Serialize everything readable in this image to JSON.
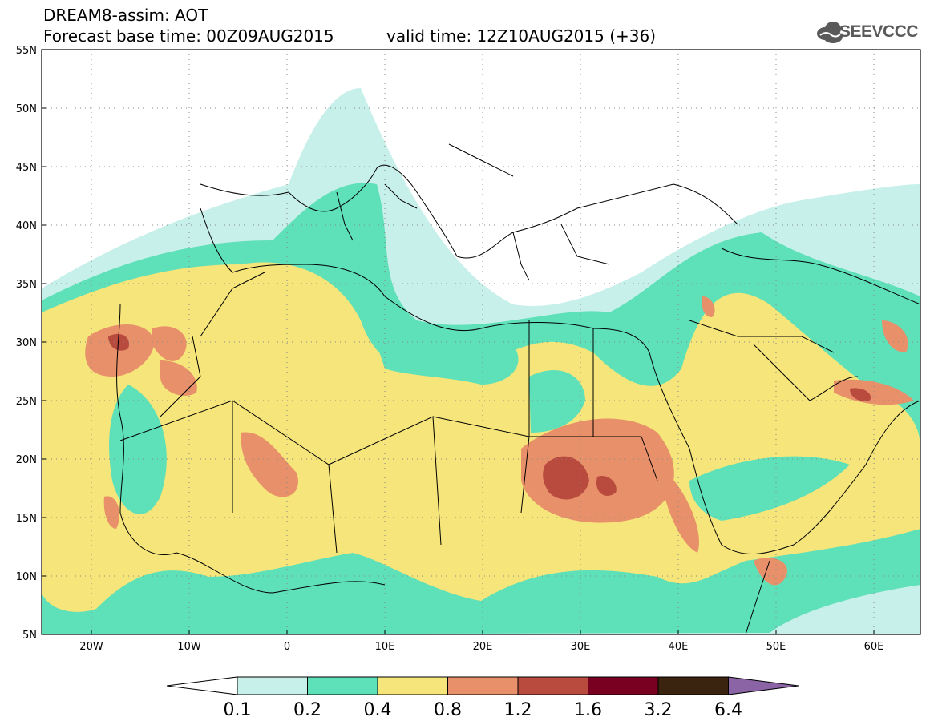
{
  "header": {
    "title": "DREAM8-assim: AOT",
    "base_time": "Forecast base time: 00Z09AUG2015",
    "valid_time": "valid time: 12Z10AUG2015 (+36)"
  },
  "logo": {
    "text": "SEEVCCC",
    "icon": "cloud-logo-icon"
  },
  "map": {
    "region": "North Africa, Mediterranean, Middle East",
    "lat_ticks": [
      "55N",
      "50N",
      "45N",
      "40N",
      "35N",
      "30N",
      "25N",
      "20N",
      "15N",
      "10N",
      "5N"
    ],
    "lon_ticks": [
      "20W",
      "10W",
      "0",
      "10E",
      "20E",
      "30E",
      "40E",
      "50E",
      "60E"
    ]
  },
  "colorbar": {
    "labels": [
      "0.1",
      "0.2",
      "0.4",
      "0.8",
      "1.2",
      "1.6",
      "3.2",
      "6.4"
    ],
    "colors": [
      "#c8f0ea",
      "#5ee0b8",
      "#f5e57a",
      "#e8906a",
      "#b84a3e",
      "#7a0022",
      "#3a2410",
      "#8a64a4"
    ]
  },
  "chart_data": {
    "type": "heatmap",
    "variable": "AOT",
    "levels": [
      0.1,
      0.2,
      0.4,
      0.8,
      1.2,
      1.6,
      3.2,
      6.4
    ],
    "xlim": [
      -25,
      65
    ],
    "ylim": [
      5,
      55
    ]
  }
}
